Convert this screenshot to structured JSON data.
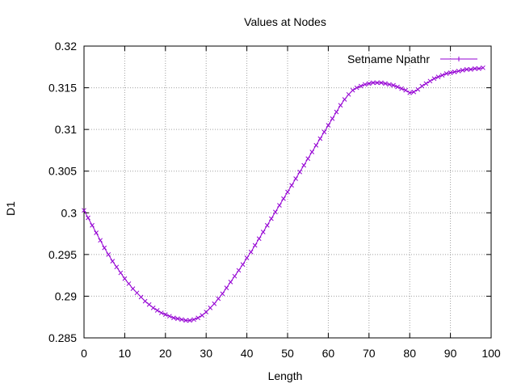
{
  "chart_data": {
    "type": "line",
    "title": "Values at Nodes",
    "xlabel": "Length",
    "ylabel": "D1",
    "xlim": [
      0,
      100
    ],
    "ylim": [
      0.285,
      0.32
    ],
    "x_ticks": [
      "0",
      "10",
      "20",
      "30",
      "40",
      "50",
      "60",
      "70",
      "80",
      "90",
      "100"
    ],
    "y_ticks": [
      "0.285",
      "0.29",
      "0.295",
      "0.3",
      "0.305",
      "0.31",
      "0.315",
      "0.32"
    ],
    "x_tick_values": [
      0,
      10,
      20,
      30,
      40,
      50,
      60,
      70,
      80,
      90,
      100
    ],
    "y_tick_values": [
      0.285,
      0.29,
      0.295,
      0.3,
      0.305,
      0.31,
      0.315,
      0.32
    ],
    "grid": true,
    "legend_position": "top-right",
    "series": [
      {
        "name": "Setname Npathr",
        "color": "#9400d3",
        "marker": "cross",
        "x": [
          0,
          1,
          2,
          3,
          4,
          5,
          6,
          7,
          8,
          9,
          10,
          11,
          12,
          13,
          14,
          15,
          16,
          17,
          18,
          19,
          20,
          21,
          22,
          23,
          24,
          25,
          26,
          27,
          28,
          29,
          30,
          31,
          32,
          33,
          34,
          35,
          36,
          37,
          38,
          39,
          40,
          41,
          42,
          43,
          44,
          45,
          46,
          47,
          48,
          49,
          50,
          51,
          52,
          53,
          54,
          55,
          56,
          57,
          58,
          59,
          60,
          61,
          62,
          63,
          64,
          65,
          66,
          67,
          68,
          69,
          70,
          71,
          72,
          73,
          74,
          75,
          76,
          77,
          78,
          79,
          80,
          81,
          82,
          83,
          84,
          85,
          86,
          87,
          88,
          89,
          90,
          91,
          92,
          93,
          94,
          95,
          96,
          97,
          98
        ],
        "y": [
          0.3003,
          0.2994,
          0.2985,
          0.2976,
          0.2967,
          0.2958,
          0.295,
          0.2942,
          0.2935,
          0.2928,
          0.2921,
          0.2915,
          0.2909,
          0.2904,
          0.2899,
          0.2894,
          0.289,
          0.2886,
          0.2883,
          0.288,
          0.2878,
          0.2876,
          0.2874,
          0.2873,
          0.2872,
          0.2871,
          0.2871,
          0.2872,
          0.2874,
          0.2877,
          0.2881,
          0.2886,
          0.2891,
          0.2897,
          0.2903,
          0.291,
          0.2917,
          0.2924,
          0.2931,
          0.2938,
          0.2946,
          0.2953,
          0.2961,
          0.2969,
          0.2977,
          0.2985,
          0.2993,
          0.3001,
          0.3009,
          0.3017,
          0.3025,
          0.3033,
          0.3041,
          0.3049,
          0.3057,
          0.3065,
          0.3073,
          0.3081,
          0.3089,
          0.3097,
          0.3105,
          0.3113,
          0.3121,
          0.3129,
          0.3136,
          0.3142,
          0.3147,
          0.315,
          0.3152,
          0.3154,
          0.3155,
          0.3156,
          0.3156,
          0.3156,
          0.3155,
          0.3154,
          0.3153,
          0.3151,
          0.3149,
          0.3147,
          0.3144,
          0.3145,
          0.3148,
          0.3152,
          0.3155,
          0.3158,
          0.3161,
          0.3163,
          0.3165,
          0.3167,
          0.3168,
          0.3169,
          0.317,
          0.3171,
          0.3172,
          0.3172,
          0.3173,
          0.3173,
          0.3174
        ]
      }
    ]
  }
}
